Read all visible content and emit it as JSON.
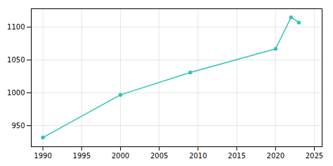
{
  "chart_data": {
    "type": "line",
    "x": [
      1990,
      2000,
      2009,
      2020,
      2022,
      2023
    ],
    "values": [
      932,
      997,
      1031,
      1067,
      1115,
      1107
    ],
    "color": "#2ec4b6",
    "marker": "circle",
    "xlim": [
      1988.5,
      2026
    ],
    "ylim": [
      918,
      1128
    ],
    "xticks": [
      1990,
      1995,
      2000,
      2005,
      2010,
      2015,
      2020,
      2025
    ],
    "yticks": [
      950,
      1000,
      1050,
      1100
    ],
    "grid": true
  }
}
